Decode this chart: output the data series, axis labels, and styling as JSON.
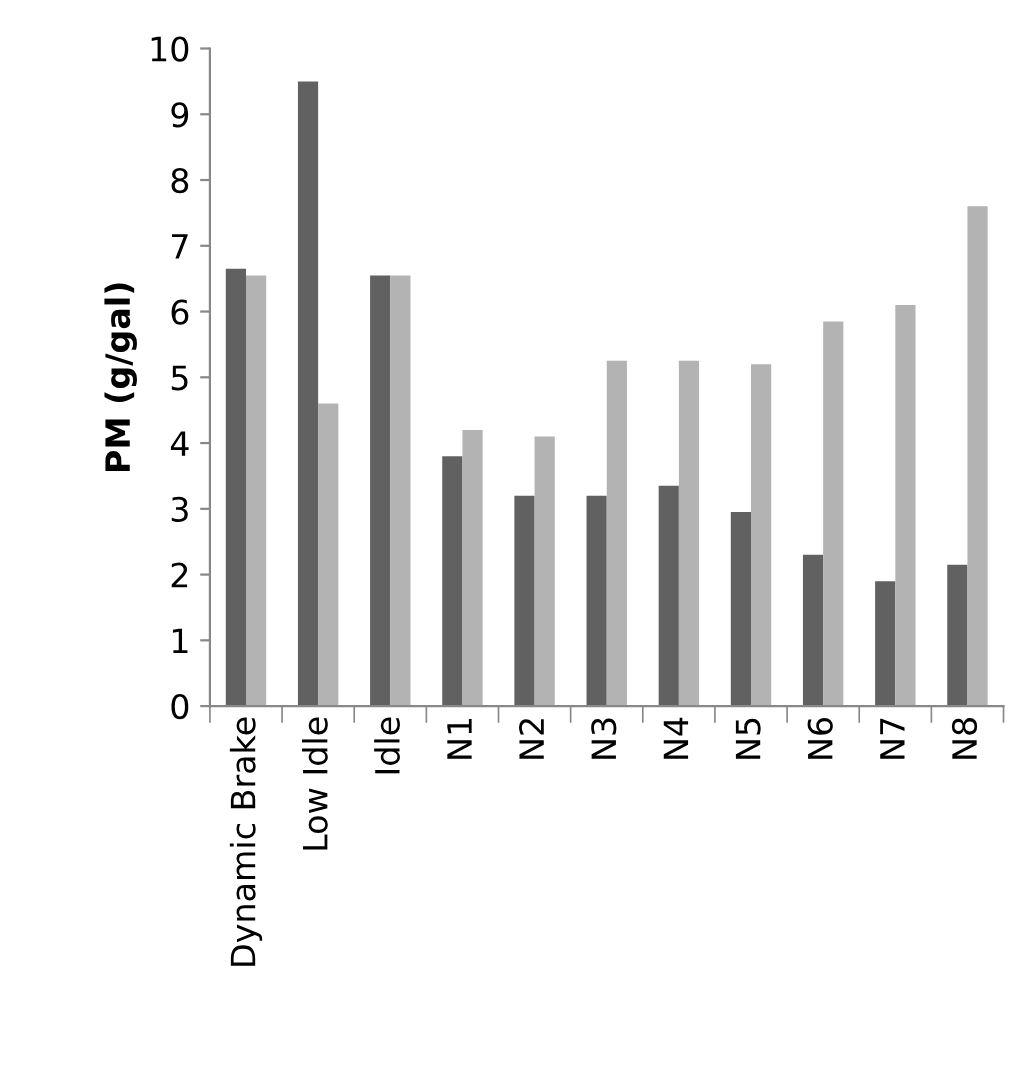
{
  "chart_data": {
    "type": "bar",
    "ylabel": "PM (g/gal)",
    "categories": [
      "Dynamic Brake",
      "Low Idle",
      "Idle",
      "N1",
      "N2",
      "N3",
      "N4",
      "N5",
      "N6",
      "N7",
      "N8"
    ],
    "series": [
      {
        "color": "#616161",
        "values": [
          6.65,
          9.5,
          6.55,
          3.8,
          3.2,
          3.2,
          3.35,
          2.95,
          2.3,
          1.9,
          2.15
        ]
      },
      {
        "color": "#b3b3b3",
        "values": [
          6.55,
          4.6,
          6.55,
          4.2,
          4.1,
          5.25,
          5.25,
          5.2,
          5.85,
          6.1,
          7.6
        ]
      }
    ],
    "ylim": [
      0,
      10
    ],
    "yticks": [
      0,
      1,
      2,
      3,
      4,
      5,
      6,
      7,
      8,
      9,
      10
    ],
    "grid": false
  }
}
